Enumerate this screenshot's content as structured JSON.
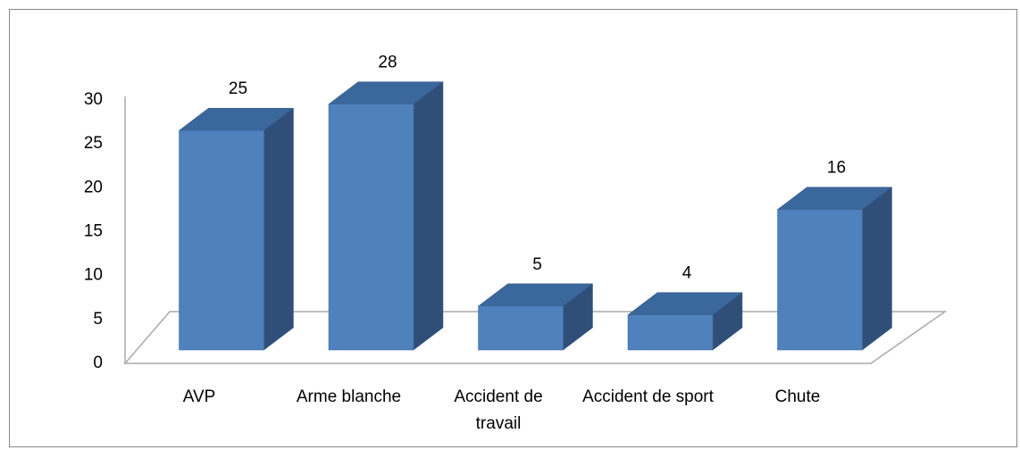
{
  "chart_data": {
    "type": "bar3d",
    "categories": [
      "AVP",
      "Arme blanche",
      "Accident de travail",
      "Accident de sport",
      "Chute"
    ],
    "values": [
      25,
      28,
      5,
      4,
      16
    ],
    "color": "#4f81bd",
    "ylim": [
      0,
      30
    ],
    "yticks": [
      0,
      5,
      10,
      15,
      20,
      25,
      30
    ]
  }
}
